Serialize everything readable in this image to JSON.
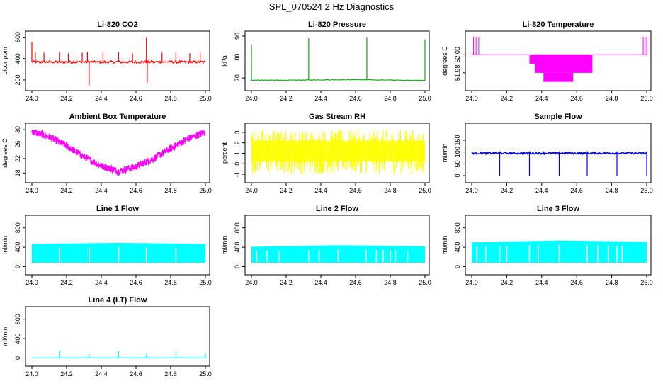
{
  "figure_title": "SPL_070524  2 Hz Diagnostics",
  "chart_data": [
    {
      "id": "co2",
      "type": "line",
      "title": "Li-820 CO2",
      "ylabel": "Licor ppm",
      "color": "#ff0000",
      "xlim": [
        24.0,
        25.0
      ],
      "ylim": [
        140,
        630
      ],
      "x_ticks": [
        "24.0",
        "24.2",
        "24.4",
        "24.6",
        "24.8",
        "25.0"
      ],
      "y_ticks": [
        {
          "v": 200,
          "label": "200"
        },
        {
          "v": 400,
          "label": "400"
        },
        {
          "v": 600,
          "label": "600"
        }
      ],
      "baseline": 368,
      "noise": 12,
      "spikes": [
        {
          "x": 24.0,
          "v": 550
        },
        {
          "x": 24.02,
          "v": 460
        },
        {
          "x": 24.07,
          "v": 455
        },
        {
          "x": 24.16,
          "v": 460
        },
        {
          "x": 24.21,
          "v": 450
        },
        {
          "x": 24.29,
          "v": 455
        },
        {
          "x": 24.32,
          "v": 460
        },
        {
          "x": 24.33,
          "v": 150
        },
        {
          "x": 24.41,
          "v": 455
        },
        {
          "x": 24.5,
          "v": 460
        },
        {
          "x": 24.58,
          "v": 450
        },
        {
          "x": 24.66,
          "v": 600
        },
        {
          "x": 24.665,
          "v": 175
        },
        {
          "x": 24.75,
          "v": 455
        },
        {
          "x": 24.83,
          "v": 460
        },
        {
          "x": 24.91,
          "v": 450
        },
        {
          "x": 24.97,
          "v": 455
        }
      ]
    },
    {
      "id": "pressure",
      "type": "line",
      "title": "Li-820 Pressure",
      "ylabel": "kPa",
      "color": "#00b000",
      "xlim": [
        24.0,
        25.0
      ],
      "ylim": [
        66,
        91
      ],
      "x_ticks": [
        "24.0",
        "24.2",
        "24.4",
        "24.6",
        "24.8",
        "25.0"
      ],
      "y_ticks": [
        {
          "v": 70,
          "label": "70"
        },
        {
          "v": 80,
          "label": "80"
        },
        {
          "v": 90,
          "label": "90"
        }
      ],
      "series": [
        {
          "x": 24.0,
          "v": 69.0
        },
        {
          "x": 24.2,
          "v": 68.9
        },
        {
          "x": 24.4,
          "v": 69.1
        },
        {
          "x": 24.6,
          "v": 69.2
        },
        {
          "x": 24.8,
          "v": 69.0
        },
        {
          "x": 25.0,
          "v": 68.8
        }
      ],
      "spikes": [
        {
          "x": 24.0,
          "v": 86
        },
        {
          "x": 24.33,
          "v": 89
        },
        {
          "x": 24.665,
          "v": 89.5
        },
        {
          "x": 25.0,
          "v": 88.5
        }
      ]
    },
    {
      "id": "licor_temp",
      "type": "line",
      "title": "Li-820 Temperature",
      "ylabel": "degrees C",
      "color": "#ff00ff",
      "xlim": [
        24.0,
        25.0
      ],
      "ylim": [
        51.965,
        52.023
      ],
      "x_ticks": [
        "24.0",
        "24.2",
        "24.4",
        "24.6",
        "24.8",
        "25.0"
      ],
      "y_ticks": [
        {
          "v": 51.98,
          "label": "51.98"
        },
        {
          "v": 52.0,
          "label": "52.00"
        }
      ],
      "baseline": 52.0,
      "blocks": [
        {
          "x0": 24.33,
          "x1": 24.69,
          "v0": 51.99,
          "v1": 52.0
        },
        {
          "x0": 24.36,
          "x1": 24.69,
          "v0": 51.98,
          "v1": 51.99
        },
        {
          "x0": 24.41,
          "x1": 24.58,
          "v0": 51.97,
          "v1": 51.98
        }
      ],
      "spikes": [
        {
          "x": 24.01,
          "v": 52.02
        },
        {
          "x": 24.025,
          "v": 52.02
        },
        {
          "x": 24.04,
          "v": 52.02
        },
        {
          "x": 24.98,
          "v": 52.02
        },
        {
          "x": 24.99,
          "v": 52.02
        },
        {
          "x": 25.0,
          "v": 52.02
        }
      ]
    },
    {
      "id": "box_temp",
      "type": "line",
      "title": "Ambient Box Temperature",
      "ylabel": "degrees C",
      "color": "#ff00ff",
      "xlim": [
        24.0,
        25.0
      ],
      "ylim": [
        16.5,
        31
      ],
      "x_ticks": [
        "24.0",
        "24.2",
        "24.4",
        "24.6",
        "24.8",
        "25.0"
      ],
      "y_ticks": [
        {
          "v": 18,
          "label": "18"
        },
        {
          "v": 22,
          "label": "22"
        },
        {
          "v": 26,
          "label": "26"
        },
        {
          "v": 30,
          "label": "30"
        }
      ],
      "series": [
        {
          "x": 24.0,
          "v": 29.5
        },
        {
          "x": 24.1,
          "v": 28.0
        },
        {
          "x": 24.2,
          "v": 25.5
        },
        {
          "x": 24.3,
          "v": 22.5
        },
        {
          "x": 24.4,
          "v": 20.0
        },
        {
          "x": 24.5,
          "v": 18.5
        },
        {
          "x": 24.6,
          "v": 19.8
        },
        {
          "x": 24.7,
          "v": 22.0
        },
        {
          "x": 24.8,
          "v": 24.8
        },
        {
          "x": 24.9,
          "v": 27.5
        },
        {
          "x": 25.0,
          "v": 29.3
        }
      ],
      "band": 1.0
    },
    {
      "id": "rh",
      "type": "line",
      "title": "Gas Stream RH",
      "ylabel": "percent",
      "color": "#ffff00",
      "xlim": [
        24.0,
        25.0
      ],
      "ylim": [
        -1.4,
        3.6
      ],
      "x_ticks": [
        "24.0",
        "24.2",
        "24.4",
        "24.6",
        "24.8",
        "25.0"
      ],
      "y_ticks": [
        {
          "v": -1,
          "label": "-1"
        },
        {
          "v": 0,
          "label": "0"
        },
        {
          "v": 1,
          "label": "1"
        },
        {
          "v": 2,
          "label": "2"
        },
        {
          "v": 3,
          "label": "3"
        }
      ],
      "range": [
        -1.0,
        3.3
      ]
    },
    {
      "id": "sample_flow",
      "type": "line",
      "title": "Sample Flow",
      "ylabel": "ml/min",
      "color": "#0000ff",
      "xlim": [
        24.0,
        25.0
      ],
      "ylim": [
        -12,
        210
      ],
      "x_ticks": [
        "24.0",
        "24.2",
        "24.4",
        "24.6",
        "24.8",
        "25.0"
      ],
      "y_ticks": [
        {
          "v": 0,
          "label": "0"
        },
        {
          "v": 50,
          "label": "50"
        },
        {
          "v": 100,
          "label": "100"
        },
        {
          "v": 150,
          "label": "150"
        }
      ],
      "baseline": 95,
      "dips": [
        {
          "x": 24.16,
          "v": 0
        },
        {
          "x": 24.33,
          "v": 0
        },
        {
          "x": 24.5,
          "v": 0
        },
        {
          "x": 24.66,
          "v": 0
        },
        {
          "x": 24.83,
          "v": 0
        },
        {
          "x": 25.0,
          "v": 0
        }
      ]
    },
    {
      "id": "line1",
      "type": "line",
      "title": "Line 1 Flow",
      "ylabel": "ml/min",
      "color": "#00ffff",
      "xlim": [
        24.0,
        25.0
      ],
      "ylim": [
        -80,
        1000
      ],
      "x_ticks": [
        "24.0",
        "24.2",
        "24.4",
        "24.6",
        "24.8",
        "25.0"
      ],
      "y_ticks": [
        {
          "v": 0,
          "label": "0"
        },
        {
          "v": 400,
          "label": "400"
        },
        {
          "v": 800,
          "label": "800"
        }
      ],
      "band_low": 80,
      "band_high": [
        {
          "x": 24.0,
          "v": 470
        },
        {
          "x": 24.5,
          "v": 490
        },
        {
          "x": 25.0,
          "v": 470
        }
      ],
      "gaps": [
        24.16,
        24.33,
        24.5,
        24.66,
        24.83
      ]
    },
    {
      "id": "line2",
      "type": "line",
      "title": "Line 2 Flow",
      "ylabel": "ml/min",
      "color": "#00ffff",
      "xlim": [
        24.0,
        25.0
      ],
      "ylim": [
        -80,
        1000
      ],
      "x_ticks": [
        "24.0",
        "24.2",
        "24.4",
        "24.6",
        "24.8",
        "25.0"
      ],
      "y_ticks": [
        {
          "v": 0,
          "label": "0"
        },
        {
          "v": 400,
          "label": "400"
        },
        {
          "v": 800,
          "label": "800"
        }
      ],
      "band_low": 80,
      "band_high": [
        {
          "x": 24.0,
          "v": 410
        },
        {
          "x": 24.5,
          "v": 440
        },
        {
          "x": 25.0,
          "v": 420
        }
      ],
      "gaps": [
        24.03,
        24.09,
        24.16,
        24.33,
        24.39,
        24.5,
        24.66,
        24.72,
        24.76,
        24.8,
        24.83,
        24.9
      ]
    },
    {
      "id": "line3",
      "type": "line",
      "title": "Line 3 Flow",
      "ylabel": "ml/min",
      "color": "#00ffff",
      "xlim": [
        24.0,
        25.0
      ],
      "ylim": [
        -80,
        1000
      ],
      "x_ticks": [
        "24.0",
        "24.2",
        "24.4",
        "24.6",
        "24.8",
        "25.0"
      ],
      "y_ticks": [
        {
          "v": 0,
          "label": "0"
        },
        {
          "v": 400,
          "label": "400"
        },
        {
          "v": 800,
          "label": "800"
        }
      ],
      "band_low": 80,
      "band_high": [
        {
          "x": 24.0,
          "v": 500
        },
        {
          "x": 24.5,
          "v": 540
        },
        {
          "x": 25.0,
          "v": 510
        }
      ],
      "gaps": [
        24.03,
        24.08,
        24.16,
        24.2,
        24.33,
        24.38,
        24.5,
        24.66,
        24.72,
        24.78,
        24.83,
        24.86
      ]
    },
    {
      "id": "line4",
      "type": "line",
      "title": "Line 4 (LT) Flow",
      "ylabel": "ml/min",
      "color": "#00ffff",
      "xlim": [
        24.0,
        25.0
      ],
      "ylim": [
        -80,
        1000
      ],
      "x_ticks": [
        "24.0",
        "24.2",
        "24.4",
        "24.6",
        "24.8",
        "25.0"
      ],
      "y_ticks": [
        {
          "v": 0,
          "label": "0"
        },
        {
          "v": 400,
          "label": "400"
        },
        {
          "v": 800,
          "label": "800"
        }
      ],
      "baseline": 5,
      "spikes": [
        {
          "x": 24.16,
          "v": 160
        },
        {
          "x": 24.33,
          "v": 90
        },
        {
          "x": 24.5,
          "v": 150
        },
        {
          "x": 24.66,
          "v": 90
        },
        {
          "x": 24.83,
          "v": 150
        },
        {
          "x": 25.0,
          "v": 100
        }
      ]
    }
  ]
}
